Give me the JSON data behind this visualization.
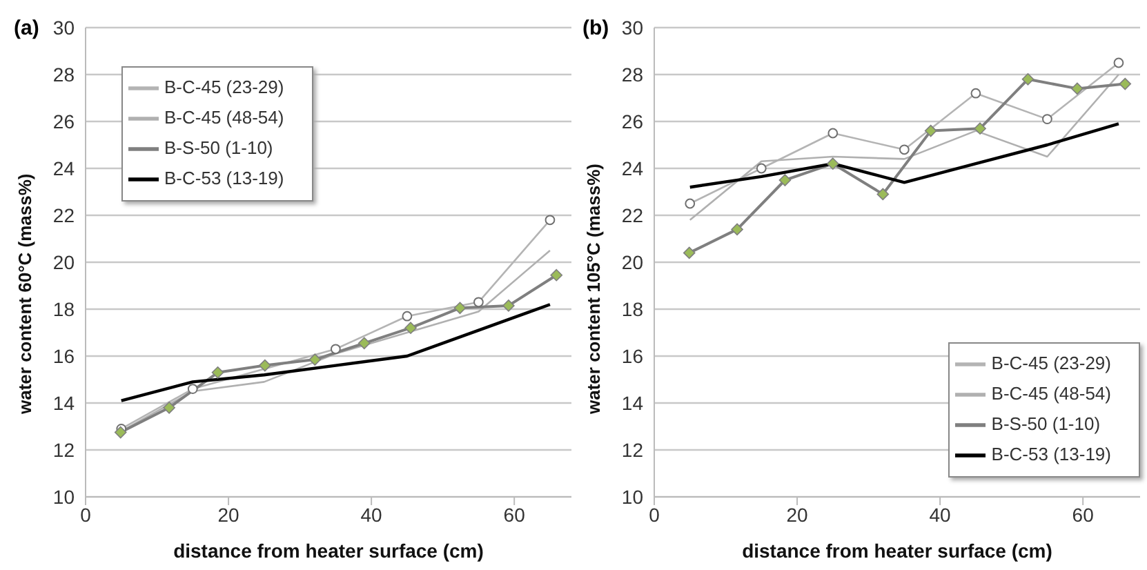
{
  "chart_data": [
    {
      "type": "line",
      "title": "(a)",
      "xlabel": "distance from heater surface (cm)",
      "ylabel": "water content 60°C (mass%)",
      "xlim": [
        0,
        68
      ],
      "xticks": [
        0,
        20,
        40,
        60
      ],
      "ylim": [
        10,
        30
      ],
      "yticks": [
        10,
        12,
        14,
        16,
        18,
        20,
        22,
        24,
        26,
        28,
        30
      ],
      "grid": "y",
      "legend": "top left",
      "line_style": "solid",
      "series": [
        {
          "name": "B-C-45 (23-29)",
          "color": "#b4b4b4",
          "marker": "circle",
          "x": [
            5,
            15,
            35,
            45,
            55,
            65
          ],
          "values": [
            12.9,
            14.6,
            16.3,
            17.7,
            18.3,
            21.8
          ]
        },
        {
          "name": "B-C-45 (48-54)",
          "color": "#b0b0b0",
          "marker": "none",
          "x": [
            5,
            15,
            25,
            35,
            45,
            55,
            65
          ],
          "values": [
            12.8,
            14.5,
            14.9,
            16.1,
            17.0,
            17.9,
            20.5
          ]
        },
        {
          "name": "B-S-50 (1-10)",
          "color": "#7f7f7f",
          "marker": "diamond",
          "x": [
            4.9,
            11.7,
            18.5,
            25.1,
            32.1,
            39,
            45.5,
            52.4,
            59.2,
            65.9
          ],
          "values": [
            12.75,
            13.8,
            15.3,
            15.6,
            15.85,
            16.55,
            17.2,
            18.05,
            18.15,
            19.45
          ]
        },
        {
          "name": "B-C-53 (13-19)",
          "color": "#000000",
          "marker": "none",
          "x": [
            5,
            15,
            25,
            35,
            45,
            55,
            65
          ],
          "values": [
            14.1,
            14.9,
            15.2,
            15.6,
            16.0,
            17.1,
            18.2
          ]
        }
      ]
    },
    {
      "type": "line",
      "title": "(b)",
      "xlabel": "distance from heater surface (cm)",
      "ylabel": "water content 105°C (mass%)",
      "xlim": [
        0,
        68
      ],
      "xticks": [
        0,
        20,
        40,
        60
      ],
      "ylim": [
        10,
        30
      ],
      "yticks": [
        10,
        12,
        14,
        16,
        18,
        20,
        22,
        24,
        26,
        28,
        30
      ],
      "grid": "y",
      "legend": "bottom right",
      "line_style": "solid",
      "series": [
        {
          "name": "B-C-45 (23-29)",
          "color": "#b4b4b4",
          "marker": "circle",
          "x": [
            5,
            15,
            25,
            35,
            45,
            55,
            65
          ],
          "values": [
            22.5,
            24.0,
            25.5,
            24.8,
            27.2,
            26.1,
            28.5
          ]
        },
        {
          "name": "B-C-45 (48-54)",
          "color": "#b0b0b0",
          "marker": "none",
          "x": [
            5,
            15,
            25,
            35,
            45,
            55,
            65
          ],
          "values": [
            21.8,
            24.3,
            24.5,
            24.4,
            25.6,
            24.5,
            28.0
          ]
        },
        {
          "name": "B-S-50 (1-10)",
          "color": "#7f7f7f",
          "marker": "diamond",
          "x": [
            4.9,
            11.6,
            18.3,
            25,
            32,
            38.7,
            45.6,
            52.3,
            59.2,
            65.9
          ],
          "values": [
            20.4,
            21.4,
            23.5,
            24.2,
            22.9,
            25.6,
            25.7,
            27.8,
            27.4,
            27.6
          ]
        },
        {
          "name": "B-C-53 (13-19)",
          "color": "#000000",
          "marker": "none",
          "x": [
            5,
            15,
            25,
            35,
            45,
            55,
            65
          ],
          "values": [
            23.2,
            23.65,
            24.2,
            23.4,
            24.2,
            25.0,
            25.9
          ]
        }
      ]
    }
  ]
}
